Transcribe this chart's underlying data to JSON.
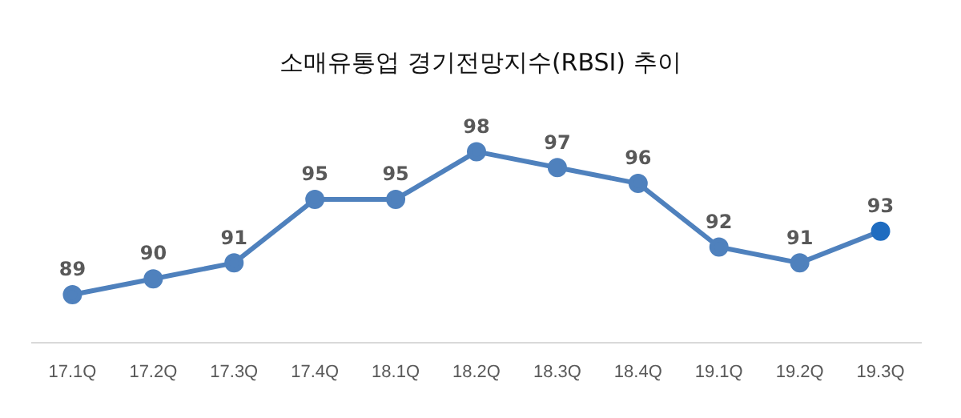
{
  "chart_data": {
    "type": "line",
    "title": "소매유통업 경기전망지수(RBSI) 추이",
    "categories": [
      "17.1Q",
      "17.2Q",
      "17.3Q",
      "17.4Q",
      "18.1Q",
      "18.2Q",
      "18.3Q",
      "18.4Q",
      "19.1Q",
      "19.2Q",
      "19.3Q"
    ],
    "series": [
      {
        "color": "#4f81bd",
        "colors": [
          "#4f81bd",
          "#4f81bd",
          "#4f81bd",
          "#4f81bd",
          "#4f81bd",
          "#4f81bd",
          "#4f81bd",
          "#4f81bd",
          "#4f81bd",
          "#4f81bd",
          "#1f6cc0"
        ],
        "values": [
          89,
          90,
          91,
          95,
          95,
          98,
          97,
          96,
          92,
          91,
          93
        ]
      }
    ],
    "data_labels": true,
    "grid": false,
    "legend": false,
    "marker": "circle",
    "line_style": "solid",
    "tick_labels": "x"
  }
}
